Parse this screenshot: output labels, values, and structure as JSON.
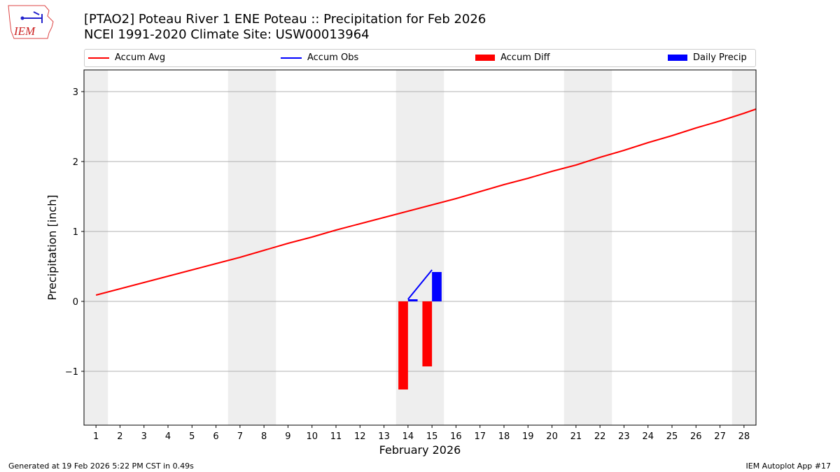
{
  "header": {
    "title_line1": "[PTAO2] Poteau River 1 ENE Poteau :: Precipitation for Feb 2026",
    "title_line2": "NCEI 1991-2020 Climate Site: USW00013964",
    "logo_text": "IEM"
  },
  "footer": {
    "left": "Generated at 19 Feb 2026 5:22 PM CST in 0.49s",
    "right": "IEM Autoplot App #17"
  },
  "chart_data": {
    "type": "line+bar",
    "xlabel": "February 2026",
    "ylabel": "Precipitation [inch]",
    "xlim": [
      0.5,
      28.5
    ],
    "ylim": [
      -1.77,
      3.31
    ],
    "x_ticks": [
      1,
      2,
      3,
      4,
      5,
      6,
      7,
      8,
      9,
      10,
      11,
      12,
      13,
      14,
      15,
      16,
      17,
      18,
      19,
      20,
      21,
      22,
      23,
      24,
      25,
      26,
      27,
      28
    ],
    "y_ticks": [
      -1,
      0,
      1,
      2,
      3
    ],
    "y_tick_labels": [
      "−1",
      "0",
      "1",
      "2",
      "3"
    ],
    "grid": "horizontal",
    "legend_placement": "top",
    "weekend_shading_days": [
      1,
      7,
      8,
      14,
      15,
      21,
      22,
      28
    ],
    "series": [
      {
        "name": "Accum Avg",
        "type": "line",
        "color": "#ff0000",
        "x": [
          1,
          2,
          3,
          4,
          5,
          6,
          7,
          8,
          9,
          10,
          11,
          12,
          13,
          14,
          15,
          16,
          17,
          18,
          19,
          20,
          21,
          22,
          23,
          24,
          25,
          26,
          27,
          28,
          28.5
        ],
        "values": [
          0.09,
          0.18,
          0.27,
          0.36,
          0.45,
          0.54,
          0.63,
          0.73,
          0.83,
          0.92,
          1.02,
          1.11,
          1.2,
          1.29,
          1.38,
          1.47,
          1.57,
          1.67,
          1.76,
          1.86,
          1.95,
          2.06,
          2.16,
          2.27,
          2.37,
          2.48,
          2.58,
          2.69,
          2.75
        ]
      },
      {
        "name": "Accum Obs",
        "type": "line",
        "color": "#0000ff",
        "x": [
          14,
          15
        ],
        "values": [
          0.03,
          0.45
        ]
      },
      {
        "name": "Accum Diff",
        "type": "bar",
        "color": "#ff0000",
        "x": [
          14,
          15
        ],
        "values": [
          -1.26,
          -0.93
        ]
      },
      {
        "name": "Daily Precip",
        "type": "bar",
        "color": "#0000ff",
        "x": [
          14,
          15
        ],
        "values": [
          0.03,
          0.42
        ]
      }
    ]
  }
}
